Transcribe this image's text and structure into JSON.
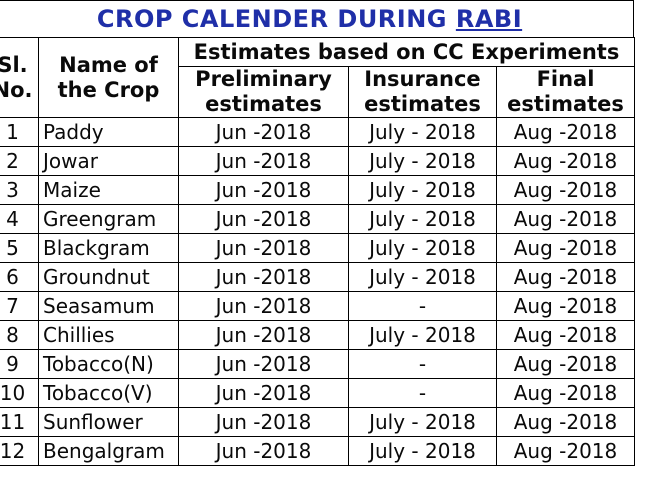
{
  "title": {
    "main": "CROP CALENDER DURING ",
    "season": "RABI"
  },
  "headers": {
    "sl_line1": "Sl.",
    "sl_line2": "No.",
    "name_line1": "Name of",
    "name_line2": "the Crop",
    "group": "Estimates based on CC Experiments",
    "prelim_line1": "Preliminary",
    "prelim_line2": "estimates",
    "insurance_line1": "Insurance",
    "insurance_line2": "estimates",
    "final_line1": "Final",
    "final_line2": "estimates"
  },
  "rows": [
    {
      "sl": "1",
      "crop": "Paddy",
      "prelim": "Jun -2018",
      "insurance": "July - 2018",
      "final": "Aug -2018"
    },
    {
      "sl": "2",
      "crop": "Jowar",
      "prelim": "Jun -2018",
      "insurance": "July - 2018",
      "final": "Aug -2018"
    },
    {
      "sl": "3",
      "crop": "Maize",
      "prelim": "Jun -2018",
      "insurance": "July - 2018",
      "final": "Aug -2018"
    },
    {
      "sl": "4",
      "crop": "Greengram",
      "prelim": "Jun -2018",
      "insurance": "July - 2018",
      "final": "Aug -2018"
    },
    {
      "sl": "5",
      "crop": "Blackgram",
      "prelim": "Jun -2018",
      "insurance": "July - 2018",
      "final": "Aug -2018"
    },
    {
      "sl": "6",
      "crop": "Groundnut",
      "prelim": "Jun -2018",
      "insurance": "July - 2018",
      "final": "Aug -2018"
    },
    {
      "sl": "7",
      "crop": "Seasamum",
      "prelim": "Jun -2018",
      "insurance": "-",
      "final": "Aug -2018"
    },
    {
      "sl": "8",
      "crop": "Chillies",
      "prelim": "Jun -2018",
      "insurance": "July - 2018",
      "final": "Aug -2018"
    },
    {
      "sl": "9",
      "crop": "Tobacco(N)",
      "prelim": "Jun -2018",
      "insurance": "-",
      "final": "Aug -2018"
    },
    {
      "sl": "10",
      "crop": "Tobacco(V)",
      "prelim": "Jun -2018",
      "insurance": "-",
      "final": "Aug -2018"
    },
    {
      "sl": "11",
      "crop": "Sunflower",
      "prelim": "Jun -2018",
      "insurance": "July - 2018",
      "final": "Aug -2018"
    },
    {
      "sl": "12",
      "crop": "Bengalgram",
      "prelim": "Jun -2018",
      "insurance": "July - 2018",
      "final": "Aug -2018"
    }
  ],
  "colors": {
    "title": "#1f2fa8",
    "text": "#0a0a0a",
    "border": "#000000"
  }
}
